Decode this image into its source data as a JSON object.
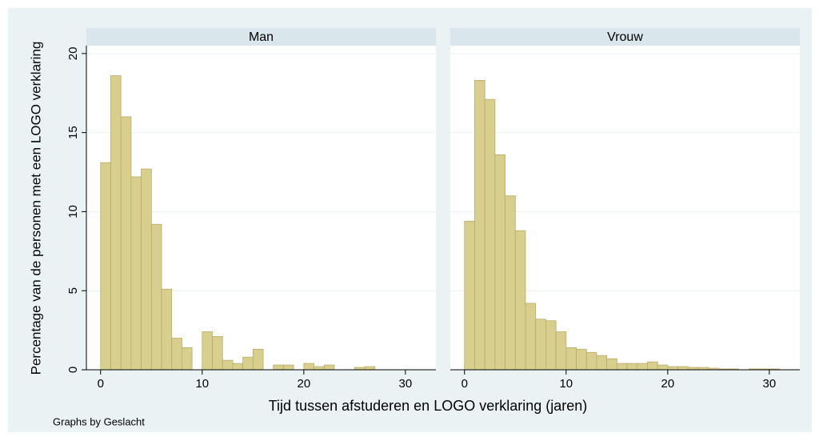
{
  "ylabel": "Percentage van de personen met een LOGO verklaring",
  "xlabel": "Tijd tussen afstuderen en LOGO verklaring (jaren)",
  "note": "Graphs by Geslacht",
  "chart_data": [
    {
      "type": "histogram",
      "title": "Man",
      "color": "#d8cf8f",
      "bins": [
        0,
        1,
        2,
        3,
        4,
        5,
        6,
        7,
        8,
        9,
        10,
        11,
        12,
        13,
        14,
        15,
        16,
        17,
        18,
        19,
        20,
        21,
        22,
        23,
        24,
        25,
        26,
        27,
        28,
        29,
        30,
        31
      ],
      "counts": [
        13.1,
        18.6,
        16.0,
        12.2,
        12.7,
        9.2,
        5.1,
        2.0,
        1.4,
        0,
        2.4,
        2.1,
        0.6,
        0.4,
        0.8,
        1.3,
        0,
        0.3,
        0.3,
        0,
        0.4,
        0.2,
        0.3,
        0,
        0,
        0.15,
        0.2,
        0,
        0,
        0,
        0
      ],
      "xlim": [
        -1.4,
        33
      ],
      "ylim": [
        0,
        20.5
      ],
      "xticks": [
        0,
        10,
        20,
        30
      ],
      "yticks": [
        0,
        5,
        10,
        15,
        20
      ],
      "grid": true
    },
    {
      "type": "histogram",
      "title": "Vrouw",
      "color": "#d8cf8f",
      "bins": [
        0,
        1,
        2,
        3,
        4,
        5,
        6,
        7,
        8,
        9,
        10,
        11,
        12,
        13,
        14,
        15,
        16,
        17,
        18,
        19,
        20,
        21,
        22,
        23,
        24,
        25,
        26,
        27,
        28,
        29,
        30,
        31
      ],
      "counts": [
        9.4,
        18.3,
        17.1,
        13.6,
        11.0,
        8.8,
        4.2,
        3.2,
        3.1,
        2.4,
        1.4,
        1.3,
        1.1,
        0.9,
        0.7,
        0.4,
        0.4,
        0.4,
        0.5,
        0.3,
        0.2,
        0.2,
        0.15,
        0.15,
        0.1,
        0.05,
        0.05,
        0,
        0.05,
        0.05,
        0.05
      ],
      "xlim": [
        -1.4,
        33
      ],
      "ylim": [
        0,
        20.5
      ],
      "xticks": [
        0,
        10,
        20,
        30
      ],
      "yticks": [
        0,
        5,
        10,
        15,
        20
      ],
      "grid": true
    }
  ]
}
